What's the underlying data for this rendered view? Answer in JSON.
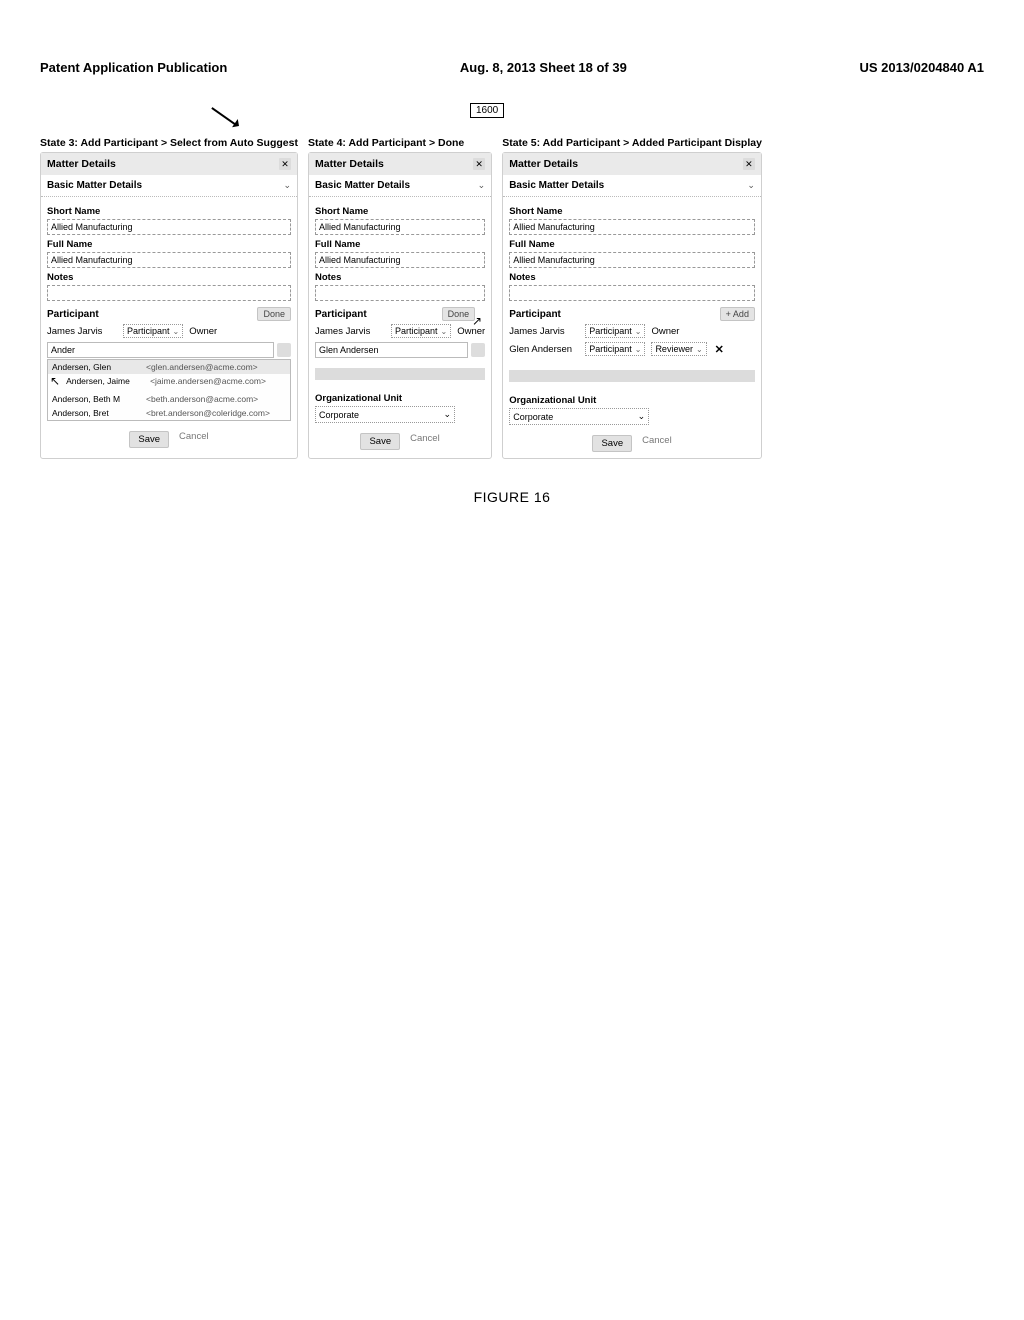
{
  "header": {
    "left": "Patent Application Publication",
    "mid": "Aug. 8, 2013  Sheet 18 of 39",
    "right": "US 2013/0204840 A1"
  },
  "ref_num": "1600",
  "figure_label": "FIGURE 16",
  "common": {
    "matter_details": "Matter Details",
    "basic_matter_details": "Basic Matter Details",
    "short_name_lbl": "Short Name",
    "full_name_lbl": "Full Name",
    "notes_lbl": "Notes",
    "participant_lbl": "Participant",
    "org_unit_lbl": "Organizational Unit",
    "caret_down": "⌄",
    "close": "✕",
    "save": "Save",
    "cancel": "Cancel",
    "short_name_val": "Allied Manufacturing",
    "full_name_val": "Allied Manufacturing",
    "notes_val": "",
    "participant_role": "Participant",
    "owner_role": "Owner",
    "reviewer_role": "Reviewer",
    "done": "Done",
    "add": "+ Add",
    "org_val": "Corporate",
    "p1_name": "James Jarvis",
    "p2_name": "Glen Andersen"
  },
  "state3": {
    "title": "State 3: Add Participant > Select from Auto Suggest",
    "search_val": "Ander",
    "suggestions": [
      {
        "name": "Andersen, Glen",
        "email": "<glen.andersen@acme.com>"
      },
      {
        "name": "Andersen, Jaime",
        "email": "<jaime.andersen@acme.com>"
      },
      {
        "name": "Anderson, Beth M",
        "email": "<beth.anderson@acme.com>"
      },
      {
        "name": "Anderson, Bret",
        "email": "<bret.anderson@coleridge.com>"
      }
    ],
    "cursor": "↖"
  },
  "state4": {
    "title": "State 4: Add Participant > Done"
  },
  "state5": {
    "title": "State 5: Add Participant > Added Participant Display"
  }
}
